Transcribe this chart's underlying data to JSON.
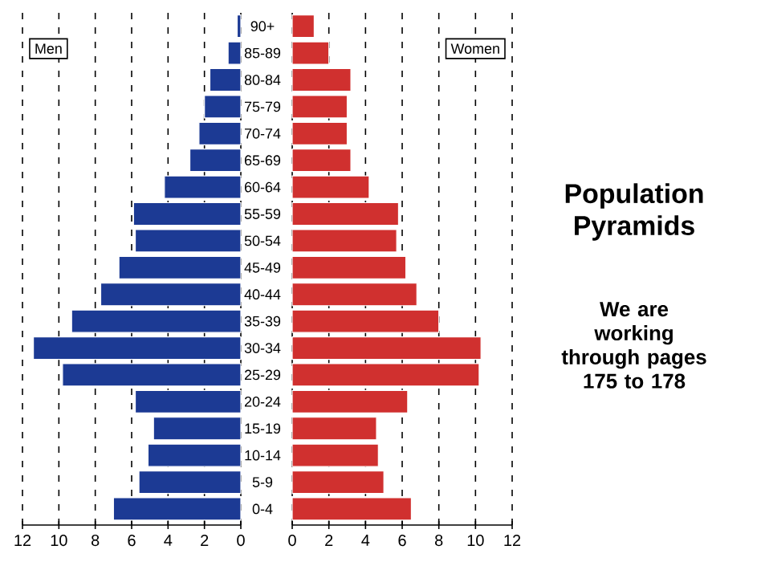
{
  "chart_data": [
    {
      "type": "bar",
      "orientation": "horizontal",
      "categories": [
        null,
        null,
        null,
        null,
        null,
        null,
        null,
        null,
        null,
        null,
        null,
        null,
        null,
        null,
        null,
        null,
        null,
        null,
        null
      ],
      "series": [
        {
          "name": "Men",
          "color": "#1c3a94",
          "values": [
            0.2,
            0.7,
            1.7,
            2.0,
            2.3,
            2.8,
            4.2,
            5.9,
            5.8,
            6.7,
            7.7,
            9.3,
            11.4,
            9.8,
            5.8,
            4.8,
            5.1,
            5.6,
            7.0
          ]
        }
      ],
      "xlim": [
        12,
        0
      ],
      "xticks": [
        12,
        10,
        8,
        6,
        4,
        2,
        0
      ],
      "grid": "x",
      "tick_labels": "x",
      "legend": "top left"
    },
    {
      "type": "bar",
      "orientation": "horizontal",
      "categories": [
        "90+",
        "85-89",
        "80-84",
        "75-79",
        "70-74",
        "65-69",
        "60-64",
        "55-59",
        "50-54",
        "45-49",
        "40-44",
        "35-39",
        "30-34",
        "25-29",
        "20-24",
        "15-19",
        "10-14",
        "5-9",
        "0-4"
      ],
      "series": [
        {
          "name": "Women",
          "color": "#d0302f",
          "values": [
            1.2,
            2.0,
            3.2,
            3.0,
            3.0,
            3.2,
            4.2,
            5.8,
            5.7,
            6.2,
            6.8,
            8.0,
            10.3,
            10.2,
            6.3,
            4.6,
            4.7,
            5.0,
            6.5
          ]
        }
      ],
      "xlim": [
        0,
        12
      ],
      "xticks": [
        0,
        2,
        4,
        6,
        8,
        10,
        12
      ],
      "grid": "x",
      "legend": "top right"
    },
    {
      "type": "other",
      "title": "Population Pyramids",
      "annotations": [
        "We are working through pages 175 to 178"
      ]
    }
  ]
}
